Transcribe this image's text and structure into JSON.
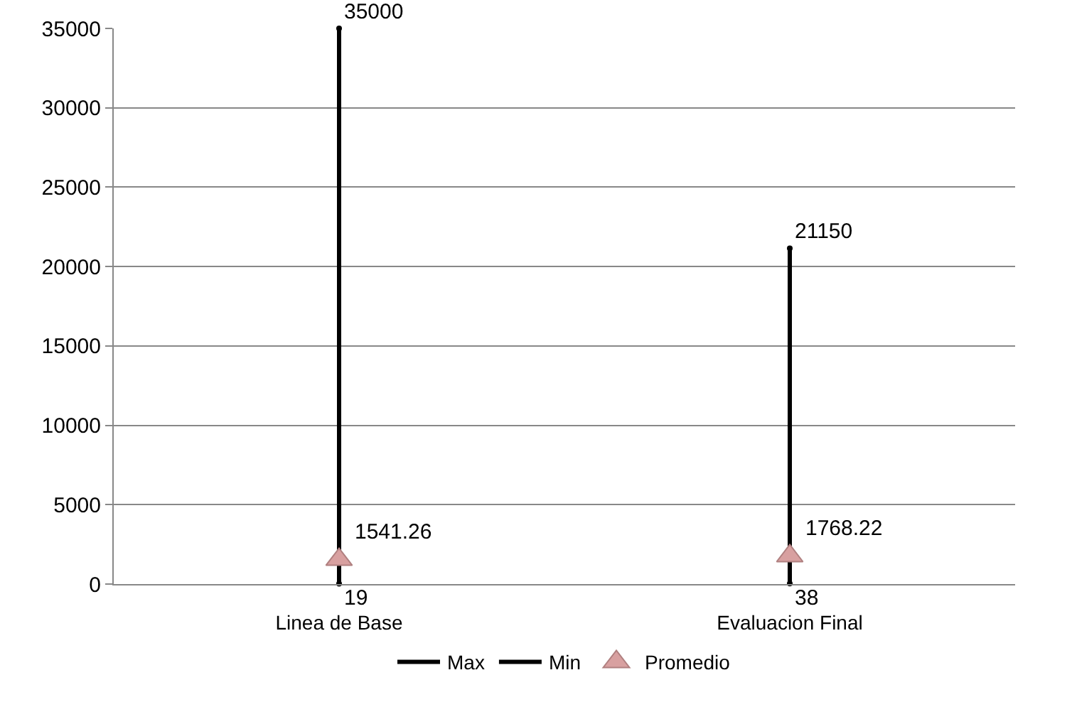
{
  "chart_data": {
    "type": "lollipop",
    "categories": [
      "Linea de Base",
      "Evaluacion Final"
    ],
    "series": [
      {
        "name": "Max",
        "color": "#000000",
        "values": [
          35000,
          21150
        ]
      },
      {
        "name": "Min",
        "color": "#000000",
        "values": [
          19,
          38
        ]
      },
      {
        "name": "Promedio",
        "type": "scatter",
        "marker": "triangle",
        "color": "#d8a0a0",
        "values": [
          1541.26,
          1768.22
        ]
      }
    ],
    "data_labels": true,
    "ylim": [
      0,
      35000
    ],
    "yticks": [
      0,
      5000,
      10000,
      15000,
      20000,
      25000,
      30000,
      35000
    ],
    "grid": "y",
    "legend": "bottom"
  }
}
